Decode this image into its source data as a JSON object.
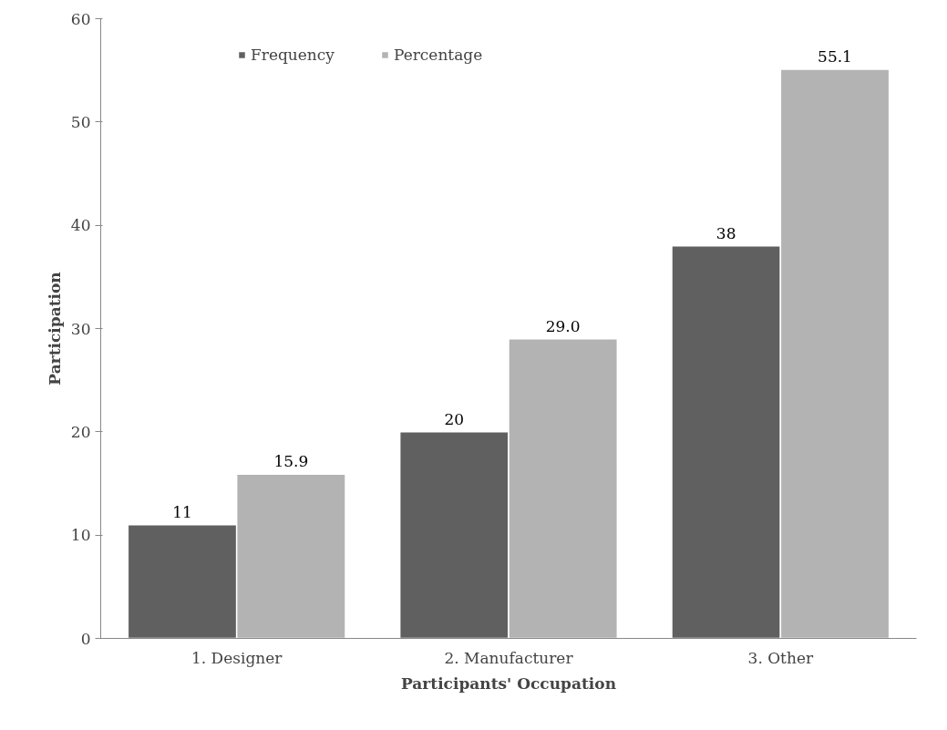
{
  "chart_data": {
    "type": "bar",
    "xlabel": "Participants' Occupation",
    "ylabel": "Participation",
    "categories": [
      "1. Designer",
      "2. Manufacturer",
      "3. Other"
    ],
    "series": [
      {
        "name": "Frequency",
        "color": "#606060",
        "values": [
          11,
          20,
          38
        ],
        "value_labels": [
          "11",
          "20",
          "38"
        ]
      },
      {
        "name": "Percentage",
        "color": "#b3b3b3",
        "values": [
          15.9,
          29.0,
          55.1
        ],
        "value_labels": [
          "15.9",
          "29.0",
          "55.1"
        ]
      }
    ],
    "ylim": [
      0,
      60
    ],
    "yticks": [
      0,
      10,
      20,
      30,
      40,
      50,
      60
    ],
    "grid": false,
    "legend": "top"
  }
}
